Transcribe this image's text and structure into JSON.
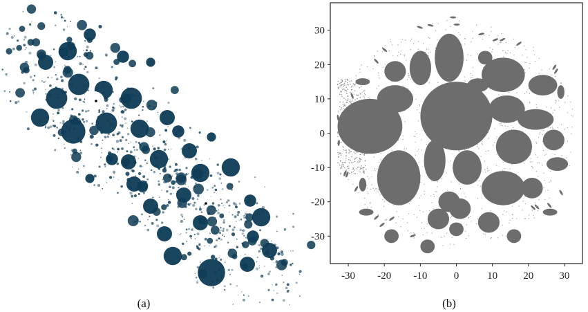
{
  "panels": {
    "a": {
      "caption": "(a)"
    },
    "b": {
      "caption": "(b)"
    }
  },
  "chart_data": [
    {
      "type": "scatter",
      "title": "",
      "xlabel": "",
      "ylabel": "",
      "axes_visible": false,
      "color": "#0e3b55",
      "description_clusters": [
        {
          "x": 0.14,
          "y": 0.2,
          "r": 0.05
        },
        {
          "x": 0.22,
          "y": 0.16,
          "r": 0.06
        },
        {
          "x": 0.26,
          "y": 0.28,
          "r": 0.07
        },
        {
          "x": 0.35,
          "y": 0.3,
          "r": 0.06
        },
        {
          "x": 0.45,
          "y": 0.33,
          "r": 0.07
        },
        {
          "x": 0.18,
          "y": 0.33,
          "r": 0.07
        },
        {
          "x": 0.12,
          "y": 0.4,
          "r": 0.06
        },
        {
          "x": 0.24,
          "y": 0.45,
          "r": 0.08
        },
        {
          "x": 0.36,
          "y": 0.42,
          "r": 0.07
        },
        {
          "x": 0.48,
          "y": 0.44,
          "r": 0.06
        },
        {
          "x": 0.58,
          "y": 0.4,
          "r": 0.05
        },
        {
          "x": 0.66,
          "y": 0.52,
          "r": 0.05
        },
        {
          "x": 0.55,
          "y": 0.55,
          "r": 0.06
        },
        {
          "x": 0.7,
          "y": 0.6,
          "r": 0.06
        },
        {
          "x": 0.81,
          "y": 0.58,
          "r": 0.06
        },
        {
          "x": 0.64,
          "y": 0.68,
          "r": 0.05
        },
        {
          "x": 0.52,
          "y": 0.72,
          "r": 0.05
        },
        {
          "x": 0.57,
          "y": 0.82,
          "r": 0.05
        },
        {
          "x": 0.7,
          "y": 0.78,
          "r": 0.05
        },
        {
          "x": 0.6,
          "y": 0.9,
          "r": 0.06
        },
        {
          "x": 0.74,
          "y": 0.96,
          "r": 0.09
        },
        {
          "x": 0.87,
          "y": 0.93,
          "r": 0.05
        },
        {
          "x": 0.92,
          "y": 0.76,
          "r": 0.06
        },
        {
          "x": 0.95,
          "y": 0.88,
          "r": 0.05
        },
        {
          "x": 0.89,
          "y": 0.83,
          "r": 0.04
        },
        {
          "x": 0.88,
          "y": 0.7,
          "r": 0.04
        },
        {
          "x": 0.3,
          "y": 0.1,
          "r": 0.04
        },
        {
          "x": 0.42,
          "y": 0.18,
          "r": 0.04
        },
        {
          "x": 0.52,
          "y": 0.2,
          "r": 0.03
        },
        {
          "x": 0.44,
          "y": 0.56,
          "r": 0.05
        },
        {
          "x": 0.38,
          "y": 0.55,
          "r": 0.04
        },
        {
          "x": 0.3,
          "y": 0.62,
          "r": 0.03
        },
        {
          "x": 0.46,
          "y": 0.64,
          "r": 0.05
        },
        {
          "x": 0.62,
          "y": 0.45,
          "r": 0.04
        },
        {
          "x": 0.74,
          "y": 0.47,
          "r": 0.03
        }
      ]
    },
    {
      "type": "scatter",
      "title": "",
      "xlabel": "",
      "ylabel": "",
      "color": "#6d6d6d",
      "xlim": [
        -35,
        35
      ],
      "ylim": [
        -38,
        38
      ],
      "xticks": [
        -30,
        -20,
        -10,
        0,
        10,
        20,
        30
      ],
      "yticks": [
        30,
        20,
        10,
        0,
        -10,
        -20,
        -30
      ],
      "xtick_labels": [
        "-30",
        "-20",
        "-10",
        "0",
        "10",
        "20",
        "30"
      ],
      "ytick_labels": [
        "30",
        "20",
        "10",
        "0",
        "-10",
        "-20",
        "-30"
      ],
      "grid": false,
      "clusters": [
        {
          "x": -24,
          "y": 2,
          "rx": 9,
          "ry": 8
        },
        {
          "x": 0,
          "y": 5,
          "rx": 10,
          "ry": 10
        },
        {
          "x": -2,
          "y": 22,
          "rx": 4,
          "ry": 7
        },
        {
          "x": -10,
          "y": 19,
          "rx": 3,
          "ry": 5
        },
        {
          "x": -17,
          "y": 18,
          "rx": 3,
          "ry": 3
        },
        {
          "x": -17,
          "y": 10,
          "rx": 5,
          "ry": 4
        },
        {
          "x": 13,
          "y": 17,
          "rx": 6,
          "ry": 5
        },
        {
          "x": 14,
          "y": 7,
          "rx": 5,
          "ry": 4
        },
        {
          "x": 22,
          "y": 4,
          "rx": 5,
          "ry": 3
        },
        {
          "x": 24,
          "y": 14,
          "rx": 4,
          "ry": 3
        },
        {
          "x": 27,
          "y": -2,
          "rx": 3,
          "ry": 3
        },
        {
          "x": 16,
          "y": -4,
          "rx": 5,
          "ry": 5
        },
        {
          "x": 13,
          "y": -16,
          "rx": 6,
          "ry": 5
        },
        {
          "x": -16,
          "y": -13,
          "rx": 6,
          "ry": 8
        },
        {
          "x": -6,
          "y": -8,
          "rx": 3,
          "ry": 6
        },
        {
          "x": 3,
          "y": -10,
          "rx": 4,
          "ry": 5
        },
        {
          "x": 21,
          "y": -16,
          "rx": 3,
          "ry": 3
        },
        {
          "x": 28,
          "y": -9,
          "rx": 3,
          "ry": 2
        },
        {
          "x": 9,
          "y": -26,
          "rx": 3,
          "ry": 3
        },
        {
          "x": -5,
          "y": -25,
          "rx": 3,
          "ry": 3
        },
        {
          "x": -2,
          "y": -20,
          "rx": 3,
          "ry": 3
        },
        {
          "x": 1,
          "y": -22,
          "rx": 3,
          "ry": 3
        },
        {
          "x": 0,
          "y": -28,
          "rx": 2,
          "ry": 2
        },
        {
          "x": -18,
          "y": -30,
          "rx": 2,
          "ry": 2
        },
        {
          "x": -8,
          "y": -33,
          "rx": 2,
          "ry": 2
        },
        {
          "x": 16,
          "y": -30,
          "rx": 2,
          "ry": 2
        },
        {
          "x": -25,
          "y": -23,
          "rx": 2,
          "ry": 1
        },
        {
          "x": 26,
          "y": -23,
          "rx": 2,
          "ry": 1
        },
        {
          "x": 6,
          "y": 14,
          "rx": 3,
          "ry": 2
        },
        {
          "x": 8,
          "y": 22,
          "rx": 2,
          "ry": 2
        },
        {
          "x": -26,
          "y": -15,
          "rx": 1,
          "ry": 2
        },
        {
          "x": 29,
          "y": 12,
          "rx": 1,
          "ry": 2
        },
        {
          "x": -26,
          "y": 15,
          "rx": 2,
          "ry": 1
        }
      ]
    }
  ]
}
